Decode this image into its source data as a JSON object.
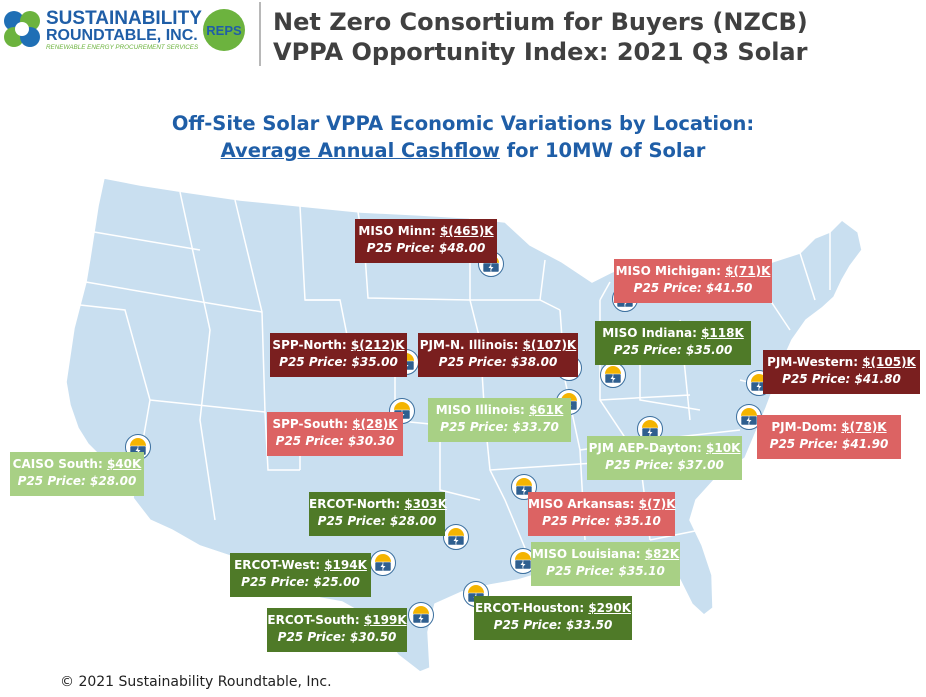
{
  "header": {
    "logo": {
      "line1": "SUSTAINABILITY",
      "line2": "ROUNDTABLE, INC.",
      "tagline": "RENEWABLE ENERGY PROCUREMENT SERVICES",
      "badge": "REPS"
    },
    "title_line1": "Net Zero Consortium for Buyers (NZCB)",
    "title_line2": "VPPA Opportunity Index: 2021 Q3 Solar"
  },
  "subtitle": {
    "line1": "Off-Site Solar VPPA Economic Variations by Location:",
    "line2_underlined": "Average Annual Cashflow",
    "line2_rest": " for 10MW of Solar"
  },
  "colors": {
    "dark_red": "#7a1f1f",
    "pink": "#dc6363",
    "dark_green": "#4f7a28",
    "light_green": "#a8d085",
    "map_fill": "#c9dff0",
    "title_blue": "#1f5ea7"
  },
  "locations": [
    {
      "name": "MISO Minn:",
      "cashflow": "$(465)K",
      "p25": "P25 Price: $48.00",
      "category": "dark-red"
    },
    {
      "name": "MISO Michigan:",
      "cashflow": "$(71)K",
      "p25": "P25 Price: $41.50",
      "category": "pink"
    },
    {
      "name": "SPP-North:",
      "cashflow": "$(212)K",
      "p25": "P25 Price:  $35.00",
      "category": "dark-red"
    },
    {
      "name": "PJM-N. Illinois:",
      "cashflow": "$(107)K",
      "p25": "P25 Price: $38.00",
      "category": "dark-red"
    },
    {
      "name": "MISO Indiana:",
      "cashflow": "$118K",
      "p25": "P25 Price:  $35.00",
      "category": "dark-green"
    },
    {
      "name": "PJM-Western:",
      "cashflow": "$(105)K",
      "p25": "P25 Price: $41.80",
      "category": "dark-red"
    },
    {
      "name": "SPP-South:",
      "cashflow": "$(28)K",
      "p25": "P25 Price: $30.30",
      "category": "pink"
    },
    {
      "name": "MISO Illinois:",
      "cashflow": "$61K",
      "p25": "P25 Price: $33.70",
      "category": "light-green"
    },
    {
      "name": "PJM-Dom:",
      "cashflow": "$(78)K",
      "p25": "P25 Price: $41.90",
      "category": "pink"
    },
    {
      "name": "CAISO South:",
      "cashflow": "$40K",
      "p25": "P25 Price: $28.00",
      "category": "light-green"
    },
    {
      "name": "PJM AEP-Dayton:",
      "cashflow": "$10K",
      "p25": "P25 Price: $37.00",
      "category": "light-green"
    },
    {
      "name": "ERCOT-North:",
      "cashflow": "$303K",
      "p25": "P25 Price: $28.00",
      "category": "dark-green"
    },
    {
      "name": "MISO Arkansas:",
      "cashflow": "$(7)K",
      "p25": "P25 Price: $35.10",
      "category": "pink"
    },
    {
      "name": "ERCOT-West:",
      "cashflow": "$194K",
      "p25": "P25 Price: $25.00",
      "category": "dark-green"
    },
    {
      "name": "MISO Louisiana:",
      "cashflow": "$82K",
      "p25": "P25 Price: $35.10",
      "category": "light-green"
    },
    {
      "name": "ERCOT-South:",
      "cashflow": "$199K",
      "p25": "P25 Price: $30.50",
      "category": "dark-green"
    },
    {
      "name": "ERCOT-Houston:",
      "cashflow": "$290K",
      "p25": "P25 Price: $33.50",
      "category": "dark-green"
    }
  ],
  "marker_icon": "solar-panel-sun-icon",
  "footer": {
    "copyright": "© 2021 Sustainability Roundtable, Inc."
  }
}
